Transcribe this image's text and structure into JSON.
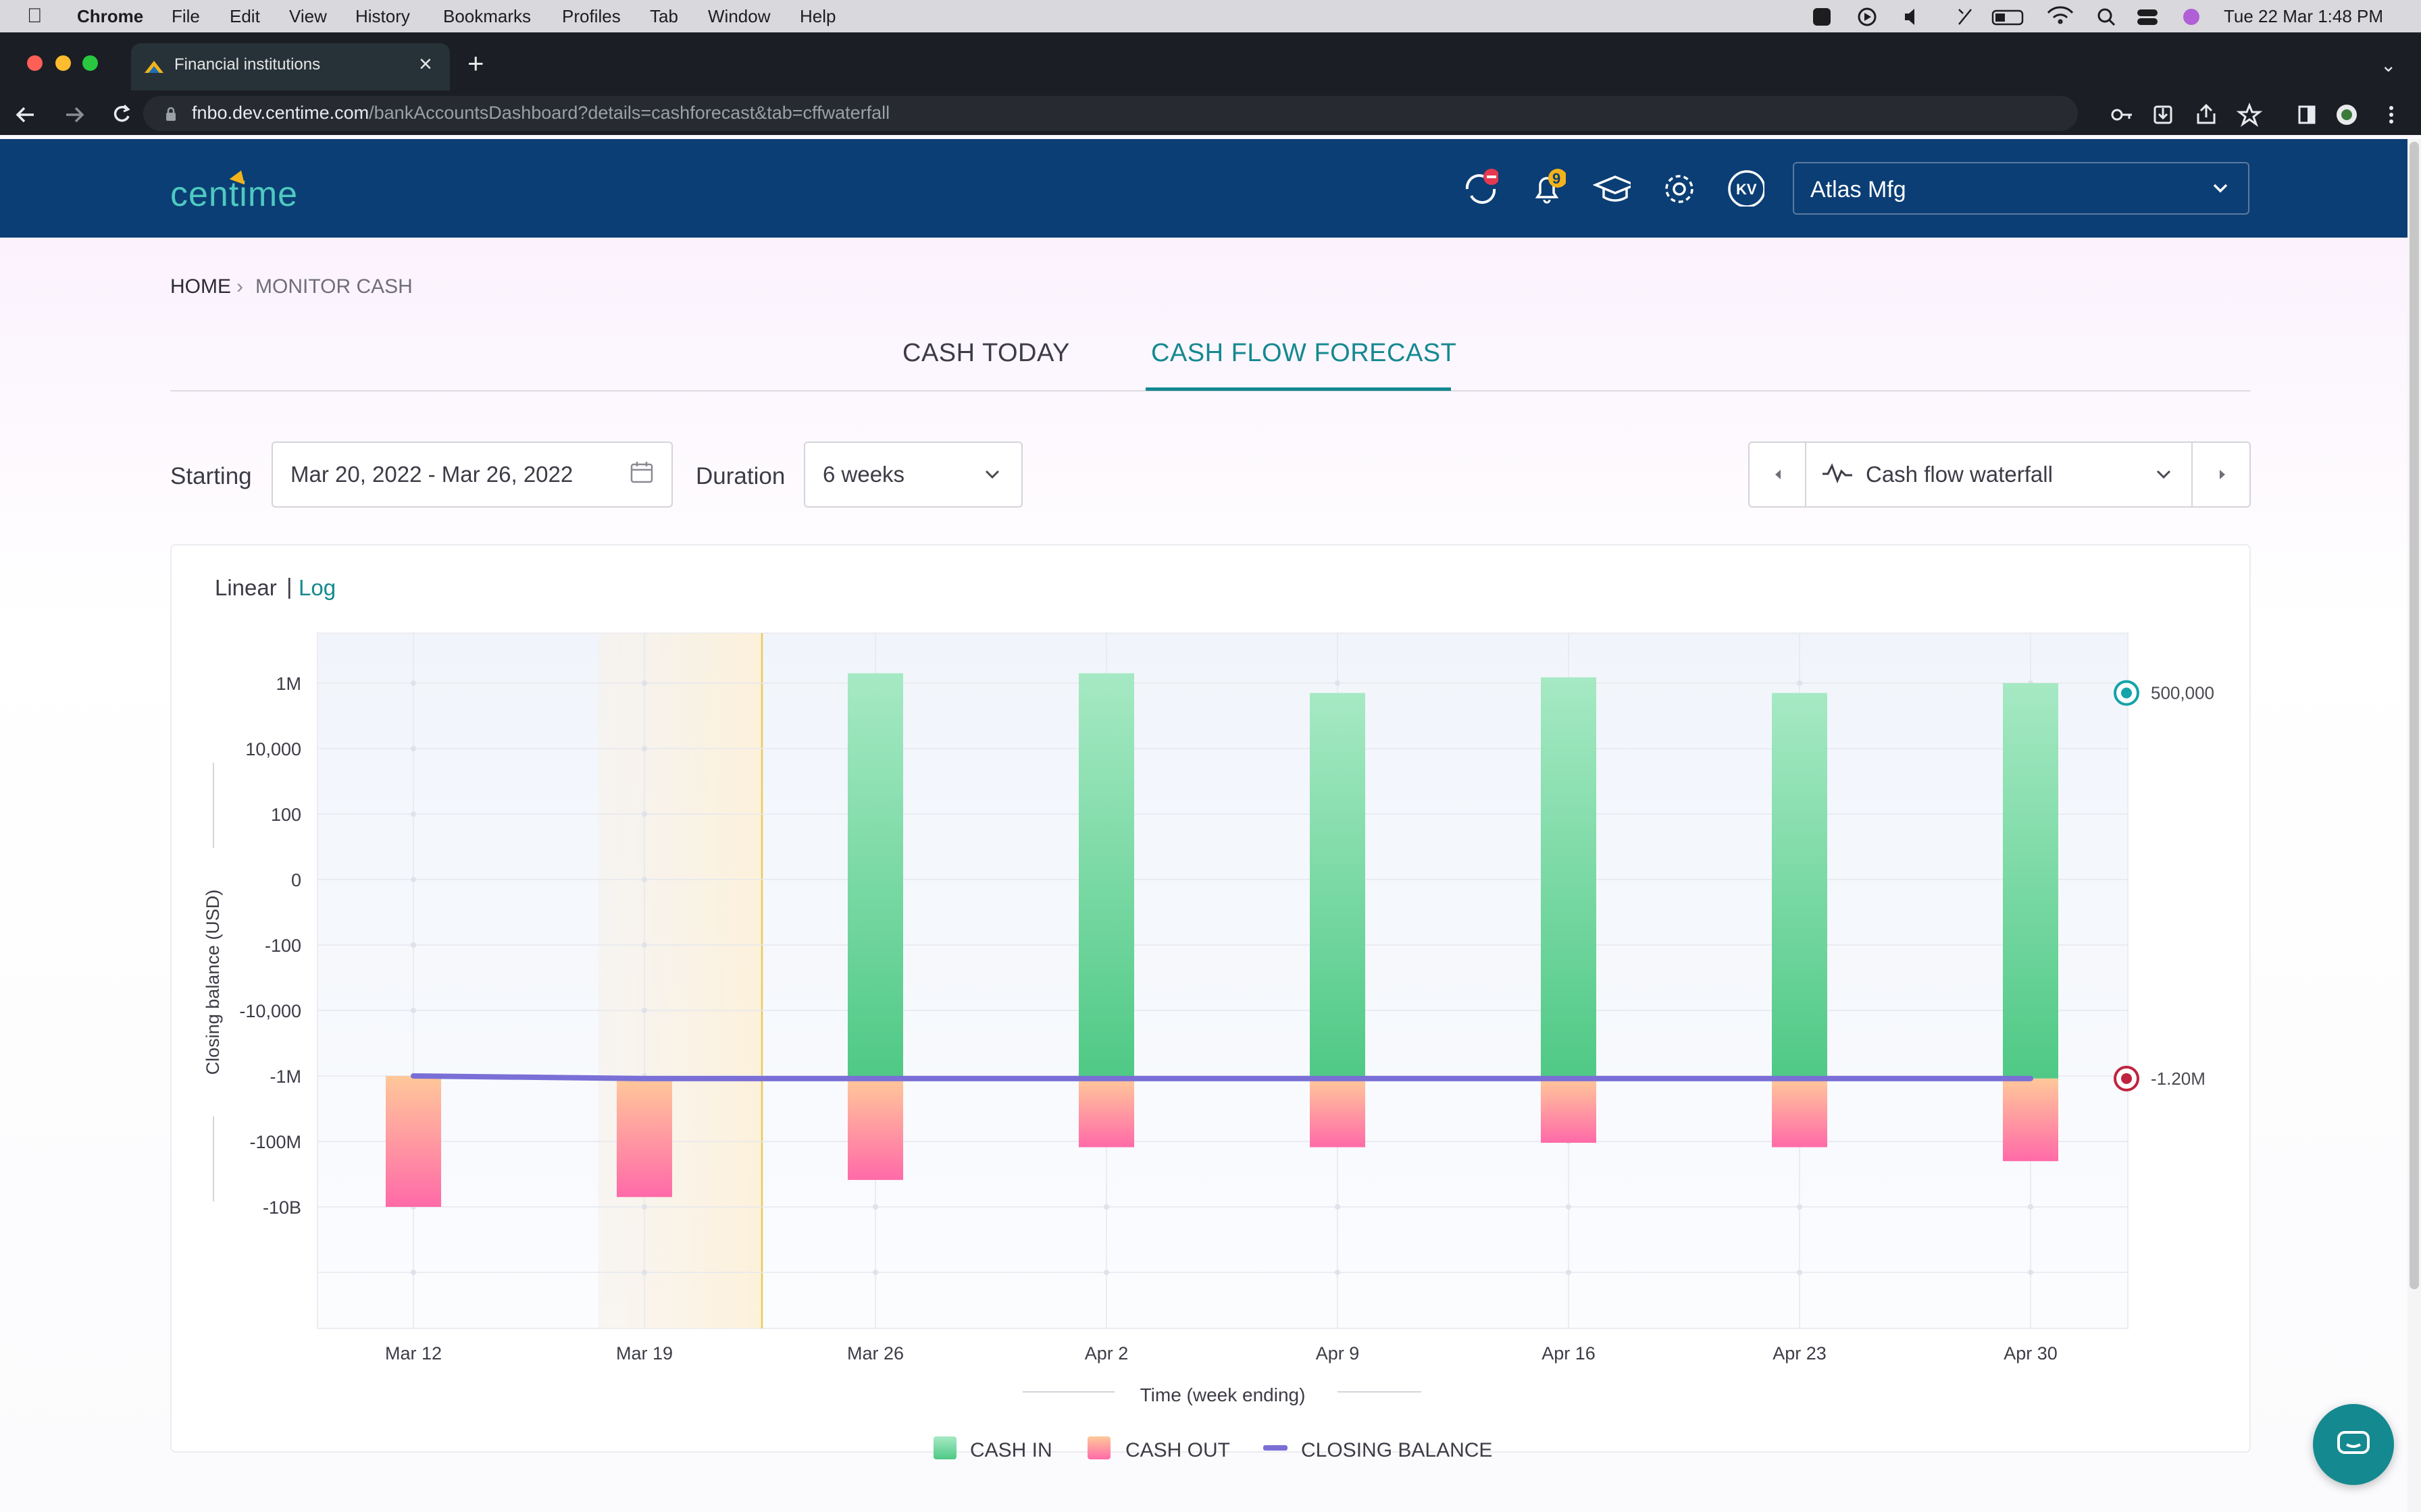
{
  "menubar": {
    "items": [
      "Chrome",
      "File",
      "Edit",
      "View",
      "History",
      "Bookmarks",
      "Profiles",
      "Tab",
      "Window",
      "Help"
    ],
    "datetime": "Tue 22 Mar  1:48 PM"
  },
  "browser": {
    "tab_title": "Financial institutions",
    "url_host": "fnbo.dev.centime.com",
    "url_path": "/bankAccountsDashboard?details=cashforecast&tab=cffwaterfall"
  },
  "app": {
    "logo": "centime",
    "notification_count": "9",
    "avatar_initials": "KV",
    "company": "Atlas Mfg"
  },
  "breadcrumb": {
    "home": "HOME",
    "current": "MONITOR CASH"
  },
  "tabs": {
    "cash_today": "CASH TODAY",
    "cash_flow_forecast": "CASH FLOW FORECAST",
    "active": "CASH FLOW FORECAST"
  },
  "controls": {
    "starting_label": "Starting",
    "date_range": "Mar 20, 2022 - Mar 26, 2022",
    "duration_label": "Duration",
    "duration_value": "6 weeks",
    "view_value": "Cash flow waterfall"
  },
  "scale_toggle": {
    "linear": "Linear",
    "sep": "|",
    "log": "Log",
    "active": "Linear"
  },
  "colors": {
    "cash_in": "#5fd08e",
    "cash_out": "#ff7aa8",
    "closing_balance": "#7a6fd6",
    "accent": "#14898f",
    "header": "#0b3e74"
  },
  "chart_data": {
    "type": "bar",
    "scale": "log",
    "ylabel": "Closing balance (USD)",
    "xlabel": "Time (week ending)",
    "y_ticks": [
      "1M",
      "10,000",
      "100",
      "0",
      "-100",
      "-10,000",
      "-1M",
      "-100M",
      "-10B"
    ],
    "categories": [
      "Mar 12",
      "Mar 19",
      "Mar 26",
      "Apr 2",
      "Apr 9",
      "Apr 16",
      "Apr 23",
      "Apr 30"
    ],
    "actuals_through": "Mar 19",
    "series": [
      {
        "name": "CASH IN",
        "values": [
          0,
          0,
          2000000,
          2000000,
          500000,
          1500000,
          500000,
          1000000
        ]
      },
      {
        "name": "CASH OUT",
        "values": [
          -10000000000,
          -5000000000,
          -1500000000,
          -150000000,
          -150000000,
          -110000000,
          -150000000,
          -400000000
        ]
      },
      {
        "name": "CLOSING BALANCE",
        "values": [
          -1000000,
          -1200000,
          -1200000,
          -1200000,
          -1200000,
          -1200000,
          -1200000,
          -1200000
        ]
      }
    ],
    "markers": [
      {
        "label": "500,000",
        "value": 500000
      },
      {
        "label": "-1.20M",
        "value": -1200000
      }
    ],
    "legend": [
      "CASH IN",
      "CASH OUT",
      "CLOSING BALANCE"
    ],
    "legend_position": "bottom",
    "grid": true
  }
}
